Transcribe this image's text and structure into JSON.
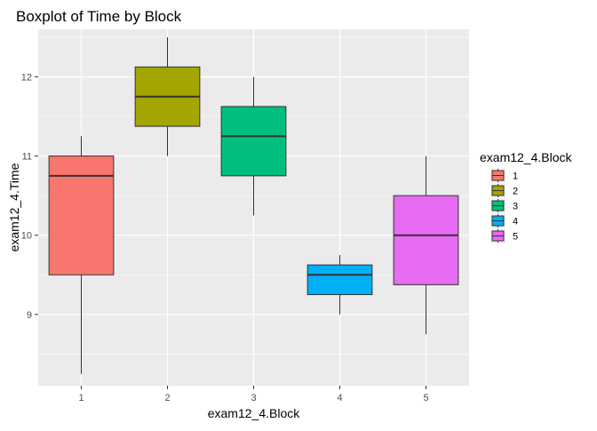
{
  "chart_data": {
    "type": "boxplot",
    "title": "Boxplot of Time by Block",
    "xlabel": "exam12_4.Block",
    "ylabel": "exam12_4.Time",
    "categories": [
      "1",
      "2",
      "3",
      "4",
      "5"
    ],
    "ylim": [
      8.1,
      12.6
    ],
    "y_ticks": [
      9,
      10,
      11,
      12
    ],
    "y_tick_labels": [
      "9",
      "10",
      "11",
      "12"
    ],
    "grid": true,
    "legend": {
      "title": "exam12_4.Block",
      "placement": "right",
      "entries": [
        "1",
        "2",
        "3",
        "4",
        "5"
      ]
    },
    "boxes": [
      {
        "category": "1",
        "whisker_low": 8.25,
        "q1": 9.5,
        "median": 10.75,
        "q3": 11.0,
        "whisker_high": 11.25,
        "color": "#F8766D"
      },
      {
        "category": "2",
        "whisker_low": 11.0,
        "q1": 11.375,
        "median": 11.75,
        "q3": 12.125,
        "whisker_high": 12.5,
        "color": "#A3A500"
      },
      {
        "category": "3",
        "whisker_low": 10.25,
        "q1": 10.75,
        "median": 11.25,
        "q3": 11.625,
        "whisker_high": 12.0,
        "color": "#00BF7D"
      },
      {
        "category": "4",
        "whisker_low": 9.0,
        "q1": 9.25,
        "median": 9.5,
        "q3": 9.625,
        "whisker_high": 9.75,
        "color": "#00B0F6"
      },
      {
        "category": "5",
        "whisker_low": 8.75,
        "q1": 9.375,
        "median": 10.0,
        "q3": 10.5,
        "whisker_high": 11.0,
        "color": "#E76BF3"
      }
    ]
  }
}
